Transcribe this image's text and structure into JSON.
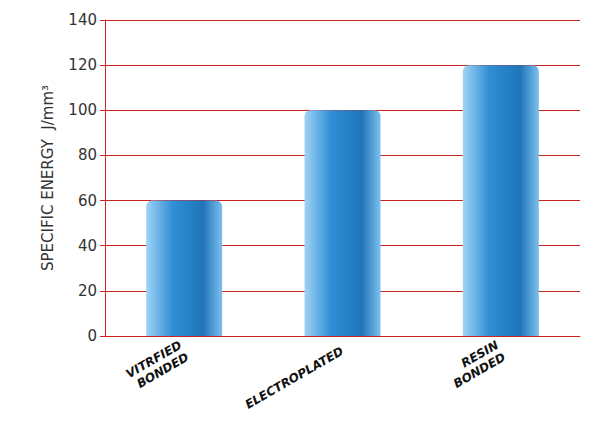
{
  "chart_data": {
    "type": "bar",
    "y_label": "SPECIFIC ENERGY  J/mm³",
    "categories": [
      "VITRFIED BONDED",
      "ELECTROPLATED",
      "RESIN BONDED"
    ],
    "values": [
      60,
      100,
      120
    ],
    "color": "#2f8fd6",
    "ylim": [
      0,
      140
    ],
    "yticks": [
      0,
      20,
      40,
      60,
      80,
      100,
      120,
      140
    ],
    "grid": true
  }
}
